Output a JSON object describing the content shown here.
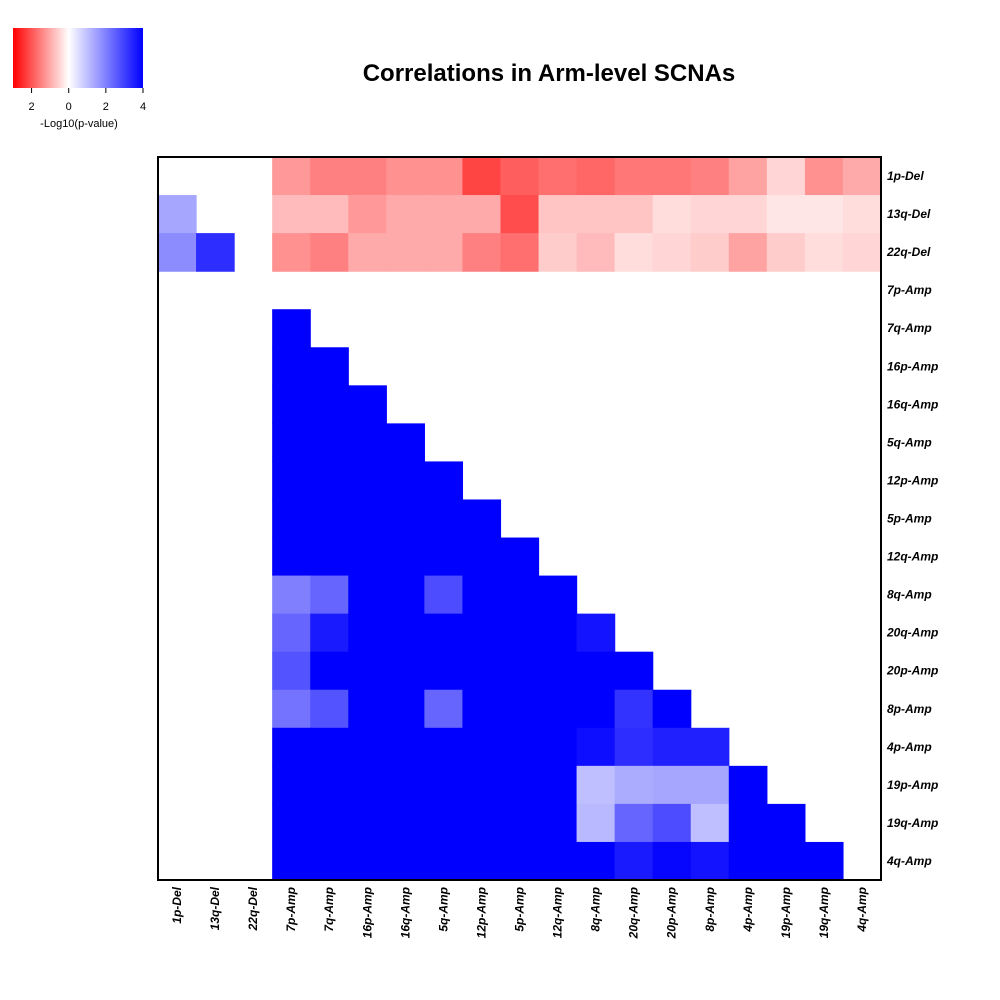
{
  "chart_data": {
    "type": "heatmap",
    "title": "Correlations in Arm-level SCNAs",
    "legend": {
      "label": "-Log10(p-value)",
      "ticks": [
        "2",
        "0",
        "2",
        "4"
      ],
      "tick_values": [
        -2,
        0,
        2,
        4
      ],
      "range": [
        -3,
        4
      ],
      "negative_color": "#ff0000",
      "zero_color": "#ffffff",
      "positive_color": "#0000ff",
      "placement": "top-left"
    },
    "columns": [
      "1p-Del",
      "13q-Del",
      "22q-Del",
      "7p-Amp",
      "7q-Amp",
      "16p-Amp",
      "16q-Amp",
      "5q-Amp",
      "12p-Amp",
      "5p-Amp",
      "12q-Amp",
      "8q-Amp",
      "20q-Amp",
      "20p-Amp",
      "8p-Amp",
      "4p-Amp",
      "19p-Amp",
      "19q-Amp",
      "4q-Amp"
    ],
    "rows": [
      "1p-Del",
      "13q-Del",
      "22q-Del",
      "7p-Amp",
      "7q-Amp",
      "16p-Amp",
      "16q-Amp",
      "5q-Amp",
      "12p-Amp",
      "5p-Amp",
      "12q-Amp",
      "8q-Amp",
      "20q-Amp",
      "20p-Amp",
      "8p-Amp",
      "4p-Amp",
      "19p-Amp",
      "19q-Amp",
      "4q-Amp"
    ],
    "values_note": "Signed -log10(p): negative = anti-correlation (red), positive = co-occurrence (blue); null = blank",
    "values": [
      [
        null,
        null,
        null,
        -1.2,
        -1.5,
        -1.5,
        -1.3,
        -1.3,
        -2.2,
        -1.9,
        -1.7,
        -1.8,
        -1.6,
        -1.6,
        -1.5,
        -1.1,
        -0.5,
        -1.3,
        -1.0
      ],
      [
        1.4,
        null,
        null,
        -0.8,
        -0.8,
        -1.2,
        -1.0,
        -1.0,
        -1.0,
        -2.1,
        -0.7,
        -0.7,
        -0.7,
        -0.4,
        -0.5,
        -0.5,
        -0.3,
        -0.3,
        -0.4
      ],
      [
        1.8,
        3.3,
        null,
        -1.3,
        -1.5,
        -1.0,
        -1.0,
        -1.0,
        -1.5,
        -1.7,
        -0.6,
        -0.8,
        -0.4,
        -0.5,
        -0.6,
        -1.1,
        -0.6,
        -0.4,
        -0.5
      ],
      [
        null,
        null,
        null,
        null,
        null,
        null,
        null,
        null,
        null,
        null,
        null,
        null,
        null,
        null,
        null,
        null,
        null,
        null,
        null
      ],
      [
        null,
        null,
        null,
        4,
        null,
        null,
        null,
        null,
        null,
        null,
        null,
        null,
        null,
        null,
        null,
        null,
        null,
        null,
        null
      ],
      [
        null,
        null,
        null,
        4,
        4,
        null,
        null,
        null,
        null,
        null,
        null,
        null,
        null,
        null,
        null,
        null,
        null,
        null,
        null
      ],
      [
        null,
        null,
        null,
        4,
        4,
        4,
        null,
        null,
        null,
        null,
        null,
        null,
        null,
        null,
        null,
        null,
        null,
        null,
        null
      ],
      [
        null,
        null,
        null,
        4,
        4,
        4,
        4,
        null,
        null,
        null,
        null,
        null,
        null,
        null,
        null,
        null,
        null,
        null,
        null
      ],
      [
        null,
        null,
        null,
        4,
        4,
        4,
        4,
        4,
        null,
        null,
        null,
        null,
        null,
        null,
        null,
        null,
        null,
        null,
        null
      ],
      [
        null,
        null,
        null,
        4,
        4,
        4,
        4,
        4,
        4,
        null,
        null,
        null,
        null,
        null,
        null,
        null,
        null,
        null,
        null
      ],
      [
        null,
        null,
        null,
        4,
        4,
        4,
        4,
        4,
        4,
        4,
        null,
        null,
        null,
        null,
        null,
        null,
        null,
        null,
        null
      ],
      [
        null,
        null,
        null,
        2.0,
        2.4,
        4,
        4,
        2.8,
        4,
        4,
        4,
        null,
        null,
        null,
        null,
        null,
        null,
        null,
        null
      ],
      [
        null,
        null,
        null,
        2.4,
        3.6,
        4,
        4,
        4,
        4,
        4,
        4,
        3.7,
        null,
        null,
        null,
        null,
        null,
        null,
        null
      ],
      [
        null,
        null,
        null,
        2.7,
        4,
        4,
        4,
        4,
        4,
        4,
        4,
        4,
        4,
        null,
        null,
        null,
        null,
        null,
        null
      ],
      [
        null,
        null,
        null,
        2.2,
        2.7,
        4,
        4,
        2.4,
        4,
        4,
        4,
        4,
        3.2,
        4,
        null,
        null,
        null,
        null,
        null
      ],
      [
        null,
        null,
        null,
        4,
        4,
        4,
        4,
        4,
        4,
        4,
        4,
        3.8,
        3.3,
        3.5,
        3.5,
        null,
        null,
        null,
        null
      ],
      [
        null,
        null,
        null,
        4,
        4,
        4,
        4,
        4,
        4,
        4,
        4,
        1.0,
        1.3,
        1.4,
        1.4,
        4,
        null,
        null,
        null
      ],
      [
        null,
        null,
        null,
        4,
        4,
        4,
        4,
        4,
        4,
        4,
        4,
        1.1,
        2.4,
        2.8,
        1.0,
        4,
        4,
        null,
        null
      ],
      [
        null,
        null,
        null,
        4,
        4,
        4,
        4,
        4,
        4,
        4,
        4,
        4,
        3.6,
        3.9,
        3.7,
        4,
        4,
        4,
        null
      ]
    ]
  }
}
